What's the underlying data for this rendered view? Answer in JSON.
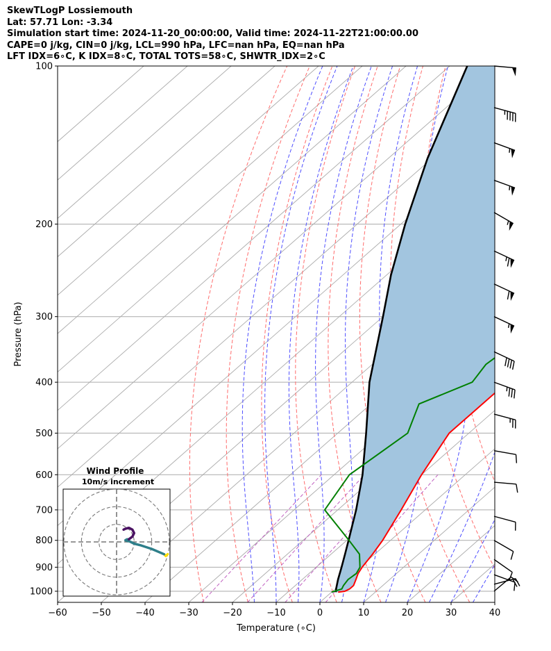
{
  "header": {
    "line1": "SkewTLogP Lossiemouth",
    "line2": "Lat: 57.71   Lon: -3.34",
    "line3": "Simulation start time: 2024-11-20_00:00:00, Valid time: 2024-11-22T21:00:00.00",
    "line4": "CAPE=0 j/kg, CIN=0 j/kg, LCL=990 hPa, LFC=nan hPa, EQ=nan hPa",
    "line5": "LFT IDX=6∘C, K IDX=8∘C, TOTAL TOTS=58∘C, SHWTR_IDX=2∘C"
  },
  "chart_data": {
    "type": "line",
    "title": "",
    "xlabel": "Temperature (∘C)",
    "ylabel": "Pressure (hPa)",
    "xlim": [
      -60,
      40
    ],
    "ylim": [
      1050,
      100
    ],
    "y_scale": "log",
    "x_ticks": [
      "−60",
      "−50",
      "−40",
      "−30",
      "−20",
      "−10",
      "0",
      "10",
      "20",
      "30",
      "40"
    ],
    "y_ticks": [
      "100",
      "200",
      "300",
      "400",
      "500",
      "600",
      "700",
      "800",
      "900",
      "1000"
    ],
    "grid": true,
    "colors": {
      "temperature": "#ff0000",
      "dewpoint": "#008000",
      "parcel": "#000000",
      "shade": "#a2c5df",
      "dry_adiabat": "#ff6b6b",
      "moist_adiabat": "#4d4dff",
      "isotherm": "#aaaaaa",
      "mixing_ratio": "#c060c0"
    },
    "series": [
      {
        "key": "temperature",
        "pressure": [
          1004,
          1000,
          990,
          975,
          950,
          925,
          900,
          850,
          800,
          700,
          600,
          500,
          460,
          400,
          350,
          320,
          300,
          270,
          240,
          210,
          200,
          185,
          170,
          155,
          140,
          130,
          120,
          110,
          100
        ],
        "temp": [
          1.5,
          2.8,
          3.3,
          3.3,
          2.3,
          1.2,
          0.5,
          -0.5,
          -1.8,
          -5.5,
          -10.0,
          -14.5,
          -14.5,
          -14.5,
          -15.0,
          -12.5,
          -11.2,
          -13.0,
          -15.5,
          -16.0,
          -14.0,
          -10.0,
          -8.3,
          -5.3,
          -2.5,
          -1.8,
          0.5,
          1.3,
          3.0
        ]
      },
      {
        "key": "dewpoint",
        "pressure": [
          1004,
          990,
          975,
          950,
          925,
          900,
          850,
          800,
          700,
          600,
          500,
          440,
          400,
          370,
          340,
          300,
          280,
          250,
          225,
          210,
          200,
          185,
          170,
          150,
          135,
          120,
          100
        ],
        "temp": [
          0.0,
          1.5,
          1.0,
          0.5,
          0.8,
          0.0,
          -3.5,
          -9.5,
          -23.0,
          -26.5,
          -24.0,
          -29.0,
          -22.5,
          -24.0,
          -23.0,
          -15.0,
          -18.0,
          -19.5,
          -20.3,
          -20.0,
          -21.5,
          -24.5,
          -24.5,
          -23.0,
          -19.0,
          -14.0,
          -10.0
        ]
      },
      {
        "key": "parcel",
        "pressure": [
          1004,
          990,
          950,
          900,
          850,
          800,
          700,
          600,
          500,
          400,
          300,
          250,
          200,
          150,
          100
        ],
        "temp": [
          1.0,
          0.2,
          -1.8,
          -4.2,
          -6.8,
          -9.6,
          -15.8,
          -23.5,
          -33.5,
          -46.0,
          -60.0,
          -69.0,
          -79.0,
          -91.0,
          -106.0
        ]
      }
    ],
    "wind_barbs": [
      {
        "p": 100,
        "dir": 275,
        "spd": 50
      },
      {
        "p": 120,
        "dir": 285,
        "spd": 45
      },
      {
        "p": 140,
        "dir": 290,
        "spd": 55
      },
      {
        "p": 165,
        "dir": 290,
        "spd": 55
      },
      {
        "p": 190,
        "dir": 300,
        "spd": 55
      },
      {
        "p": 225,
        "dir": 295,
        "spd": 65
      },
      {
        "p": 260,
        "dir": 295,
        "spd": 60
      },
      {
        "p": 300,
        "dir": 295,
        "spd": 55
      },
      {
        "p": 350,
        "dir": 295,
        "spd": 40
      },
      {
        "p": 400,
        "dir": 290,
        "spd": 35
      },
      {
        "p": 460,
        "dir": 285,
        "spd": 25
      },
      {
        "p": 540,
        "dir": 280,
        "spd": 10
      },
      {
        "p": 620,
        "dir": 275,
        "spd": 10
      },
      {
        "p": 720,
        "dir": 285,
        "spd": 10
      },
      {
        "p": 800,
        "dir": 300,
        "spd": 10
      },
      {
        "p": 870,
        "dir": 305,
        "spd": 10
      },
      {
        "p": 930,
        "dir": 290,
        "spd": 10
      },
      {
        "p": 970,
        "dir": 255,
        "spd": 20
      },
      {
        "p": 1000,
        "dir": 230,
        "spd": 10
      }
    ],
    "hodograph": {
      "title_line1": "Wind Profile",
      "title_line2": "10m/s increment",
      "rings": [
        10,
        20,
        30
      ],
      "max": 30,
      "segments": [
        {
          "color": "#ffe000",
          "points": [
            [
              29,
              -7
            ],
            [
              28,
              -8
            ],
            [
              27,
              -7
            ]
          ]
        },
        {
          "color": "#2e7f8a",
          "points": [
            [
              27,
              -7
            ],
            [
              20,
              -4
            ],
            [
              14,
              -2
            ],
            [
              10,
              -1
            ],
            [
              8,
              0
            ],
            [
              7,
              0.5
            ],
            [
              6,
              0.5
            ],
            [
              5,
              1
            ],
            [
              6,
              1.5
            ],
            [
              7,
              1.5
            ]
          ]
        },
        {
          "color": "#4b1363",
          "points": [
            [
              7,
              1.5
            ],
            [
              9,
              3
            ],
            [
              10,
              5
            ],
            [
              9,
              7
            ],
            [
              7,
              8
            ],
            [
              5,
              7.5
            ],
            [
              4,
              7
            ]
          ]
        }
      ]
    }
  }
}
